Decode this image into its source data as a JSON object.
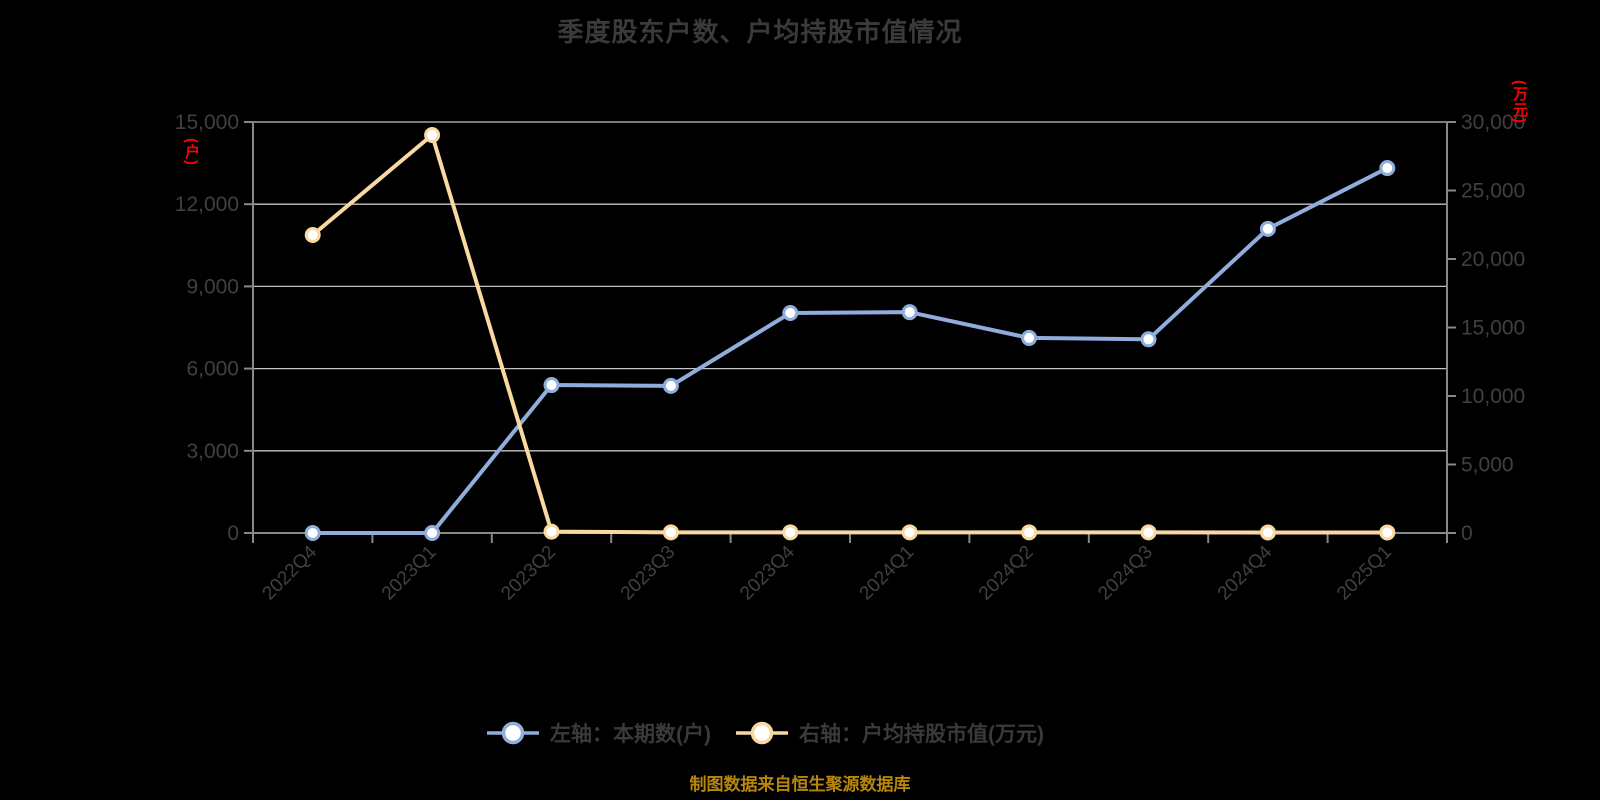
{
  "title": "季度股东户数、户均持股市值情况",
  "source_note": "制图数据来自恒生聚源数据库",
  "axis_units": {
    "left": "(户)",
    "right": "(万元)"
  },
  "legend": {
    "items": [
      {
        "label": "左轴：本期数(户)"
      },
      {
        "label": "右轴：户均持股市值(万元)"
      }
    ]
  },
  "colors": {
    "background": "#000000",
    "title_text": "#3a3a3a",
    "axis_label": "#404040",
    "axis_line": "#888888",
    "gridline": "#c4c4c4",
    "unit_label": "#ff0000",
    "source_text": "#b8860b",
    "series_blue": "#8faedc",
    "series_yellow": "#f8d99f",
    "marker_fill": "#ffffff"
  },
  "chart_data": {
    "type": "line",
    "title": "季度股东户数、户均持股市值情况",
    "categories": [
      "2022Q4",
      "2023Q1",
      "2023Q2",
      "2023Q3",
      "2023Q4",
      "2024Q1",
      "2024Q2",
      "2024Q3",
      "2024Q4",
      "2025Q1"
    ],
    "series": [
      {
        "name": "左轴：本期数(户)",
        "axis": "left",
        "color": "#8faedc",
        "values": [
          0,
          0,
          5400,
          5370,
          8030,
          8060,
          7120,
          7070,
          11100,
          13320
        ]
      },
      {
        "name": "右轴：户均持股市值(万元)",
        "axis": "right",
        "color": "#f8d99f",
        "values": [
          21750,
          29050,
          100,
          50,
          50,
          50,
          50,
          50,
          40,
          40
        ]
      }
    ],
    "left_axis": {
      "label": "(户)",
      "min": 0,
      "max": 15000,
      "ticks": [
        0,
        3000,
        6000,
        9000,
        12000,
        15000
      ]
    },
    "right_axis": {
      "label": "(万元)",
      "min": 0,
      "max": 30000,
      "ticks": [
        0,
        5000,
        10000,
        15000,
        20000,
        25000,
        30000
      ]
    },
    "x_label_rotation": 45,
    "grid": true,
    "legend_position": "bottom"
  }
}
